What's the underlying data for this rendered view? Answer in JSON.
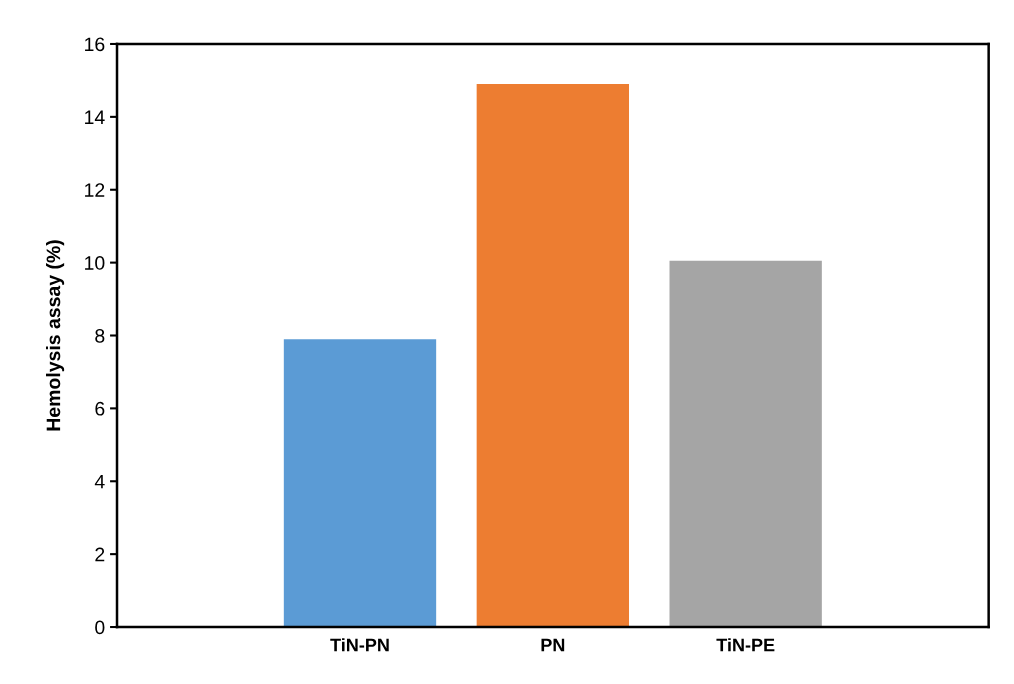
{
  "chart_data": {
    "type": "bar",
    "ylabel": "Hemolysis assay (%)",
    "categories": [
      "TiN-PN",
      "PN",
      "TiN-PE"
    ],
    "values": [
      7.9,
      14.9,
      10.05
    ],
    "colors": [
      "#5b9bd5",
      "#ed7d31",
      "#a5a5a5"
    ],
    "ylim": [
      0,
      16
    ],
    "yticks": [
      0,
      2,
      4,
      6,
      8,
      10,
      12,
      14,
      16
    ],
    "grid": false,
    "legend": false
  }
}
